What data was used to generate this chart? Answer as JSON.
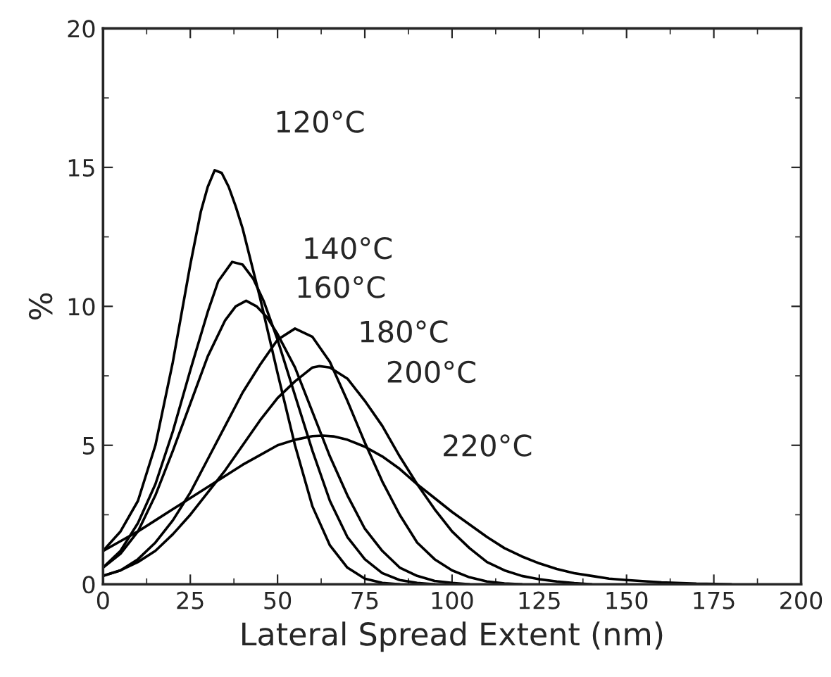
{
  "chart_data": {
    "type": "line",
    "xlabel": "Lateral Spread Extent (nm)",
    "ylabel": "%",
    "xlim": [
      0,
      200
    ],
    "ylim": [
      0,
      20
    ],
    "xticks": [
      0,
      25,
      50,
      75,
      100,
      125,
      150,
      175,
      200
    ],
    "yticks": [
      0,
      5,
      10,
      15,
      20
    ],
    "grid": false,
    "legend": false,
    "marker": "none",
    "line_style": "solid",
    "series": [
      {
        "name": "120°C",
        "color": "#000000",
        "x": [
          0,
          5,
          10,
          15,
          20,
          25,
          28,
          30,
          32,
          34,
          36,
          38,
          40,
          45,
          50,
          55,
          60,
          65,
          70,
          75,
          80,
          85
        ],
        "values": [
          1.2,
          1.9,
          3.0,
          5.0,
          8.0,
          11.5,
          13.4,
          14.3,
          14.9,
          14.8,
          14.3,
          13.6,
          12.8,
          10.3,
          7.6,
          5.0,
          2.8,
          1.4,
          0.6,
          0.2,
          0.05,
          0
        ]
      },
      {
        "name": "140°C",
        "color": "#000000",
        "x": [
          0,
          5,
          10,
          15,
          20,
          25,
          30,
          33,
          37,
          40,
          43,
          46,
          50,
          55,
          60,
          65,
          70,
          75,
          80,
          85,
          90,
          95
        ],
        "values": [
          0.6,
          1.2,
          2.2,
          3.6,
          5.5,
          7.7,
          9.8,
          10.9,
          11.6,
          11.5,
          11.0,
          10.2,
          8.8,
          6.8,
          4.8,
          3.0,
          1.7,
          0.9,
          0.4,
          0.15,
          0.05,
          0
        ]
      },
      {
        "name": "160°C",
        "color": "#000000",
        "x": [
          0,
          5,
          10,
          15,
          20,
          25,
          30,
          35,
          38,
          41,
          44,
          47,
          50,
          55,
          60,
          65,
          70,
          75,
          80,
          85,
          90,
          95,
          100,
          105
        ],
        "values": [
          0.6,
          1.1,
          1.9,
          3.2,
          4.8,
          6.5,
          8.2,
          9.5,
          10.0,
          10.2,
          10.0,
          9.6,
          9.0,
          7.8,
          6.2,
          4.6,
          3.2,
          2.0,
          1.2,
          0.6,
          0.3,
          0.12,
          0.05,
          0
        ]
      },
      {
        "name": "180°C",
        "color": "#000000",
        "x": [
          0,
          5,
          10,
          15,
          20,
          25,
          30,
          35,
          40,
          45,
          50,
          55,
          60,
          65,
          70,
          75,
          80,
          85,
          90,
          95,
          100,
          105,
          110,
          115,
          120
        ],
        "values": [
          0.3,
          0.5,
          0.9,
          1.5,
          2.3,
          3.3,
          4.5,
          5.7,
          6.9,
          7.9,
          8.8,
          9.2,
          8.9,
          8.0,
          6.6,
          5.1,
          3.7,
          2.5,
          1.5,
          0.9,
          0.5,
          0.25,
          0.1,
          0.03,
          0
        ]
      },
      {
        "name": "200°C",
        "color": "#000000",
        "x": [
          0,
          5,
          10,
          15,
          20,
          25,
          30,
          35,
          40,
          45,
          50,
          55,
          60,
          62,
          65,
          70,
          75,
          80,
          85,
          90,
          95,
          100,
          105,
          110,
          115,
          120,
          125,
          130,
          135,
          140
        ],
        "values": [
          0.3,
          0.5,
          0.8,
          1.2,
          1.8,
          2.5,
          3.3,
          4.1,
          5.0,
          5.9,
          6.7,
          7.3,
          7.8,
          7.85,
          7.8,
          7.4,
          6.6,
          5.7,
          4.6,
          3.6,
          2.7,
          1.9,
          1.3,
          0.8,
          0.5,
          0.3,
          0.18,
          0.1,
          0.04,
          0
        ]
      },
      {
        "name": "220°C",
        "color": "#000000",
        "x": [
          0,
          5,
          10,
          15,
          20,
          25,
          30,
          35,
          40,
          45,
          50,
          55,
          60,
          63,
          66,
          70,
          75,
          80,
          85,
          90,
          95,
          100,
          105,
          110,
          115,
          120,
          125,
          130,
          135,
          140,
          145,
          150,
          160,
          170,
          180
        ],
        "values": [
          1.2,
          1.55,
          1.9,
          2.3,
          2.7,
          3.1,
          3.5,
          3.9,
          4.3,
          4.65,
          5.0,
          5.2,
          5.33,
          5.35,
          5.32,
          5.2,
          4.95,
          4.6,
          4.15,
          3.6,
          3.1,
          2.6,
          2.15,
          1.7,
          1.3,
          1.0,
          0.75,
          0.55,
          0.4,
          0.3,
          0.2,
          0.15,
          0.07,
          0.02,
          0
        ]
      }
    ]
  }
}
